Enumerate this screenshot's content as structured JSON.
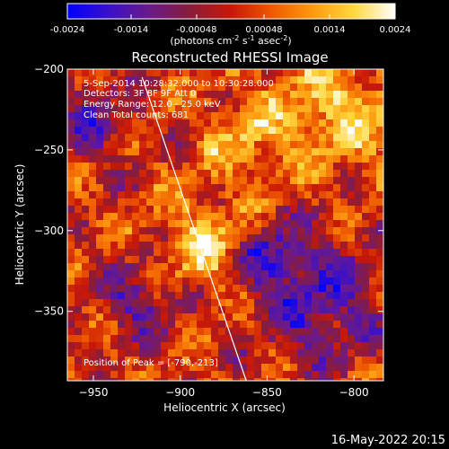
{
  "colorbar": {
    "ticks": [
      "-0.0024",
      "-0.0014",
      "-0.00048",
      "0.00048",
      "0.0014",
      "0.0024"
    ],
    "units_prefix": "(photons cm",
    "units_exp1": "-2",
    "units_mid": " s",
    "units_exp2": "-1",
    "units_suffix_a": " asec",
    "units_exp3": "-2",
    "units_close": ")",
    "colors": [
      "#0000ff",
      "#3a10c8",
      "#6a1a8a",
      "#8a1c3a",
      "#c81808",
      "#ee5a00",
      "#ff9a10",
      "#ffd840",
      "#ffffff"
    ]
  },
  "chart_data": {
    "type": "heatmap",
    "title": "Reconstructed RHESSI Image",
    "xlabel": "Heliocentric X (arcsec)",
    "ylabel": "Heliocentric Y (arcsec)",
    "xlim": [
      -965,
      -783
    ],
    "ylim": [
      -393,
      -200
    ],
    "xticks": [
      -950,
      -900,
      -850,
      -800
    ],
    "yticks": [
      -200,
      -250,
      -300,
      -350
    ],
    "xtick_labels": [
      "−950",
      "−900",
      "−850",
      "−800"
    ],
    "ytick_labels": [
      "−200",
      "−250",
      "−300",
      "−350"
    ],
    "value_range": [
      -0.0024,
      0.0024
    ],
    "peak": [
      -790,
      -213
    ],
    "limb_line": {
      "x": [
        -922,
        -862
      ],
      "y": [
        -205,
        -393
      ]
    }
  },
  "annotations": {
    "line1": "5-Sep-2014 10:28:32.000 to 10:30:28.000",
    "line2": "Detectors: 3F 8F 9F  Att 0",
    "line3": "Energy Range: 12.0 - 25.0 keV",
    "line4": "Clean     Total counts: 681",
    "peak_text": "Position of Peak = [-790,-213]"
  },
  "footer": {
    "timestamp": "16-May-2022 20:15"
  }
}
